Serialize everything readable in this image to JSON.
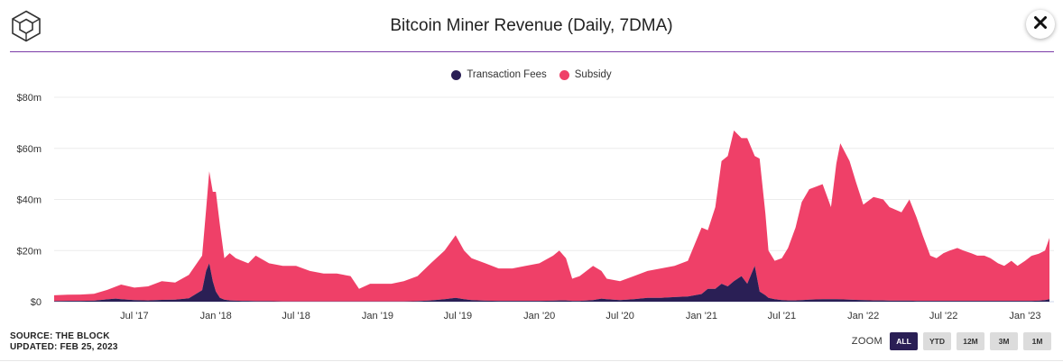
{
  "header": {
    "title": "Bitcoin Miner Revenue (Daily, 7DMA)"
  },
  "legend": [
    {
      "label": "Transaction Fees",
      "color": "#2a1f55"
    },
    {
      "label": "Subsidy",
      "color": "#ef4068"
    }
  ],
  "footer": {
    "source": "SOURCE: THE BLOCK",
    "updated": "UPDATED: FEB 25, 2023"
  },
  "zoom": {
    "label": "ZOOM",
    "buttons": [
      "ALL",
      "YTD",
      "12M",
      "3M",
      "1M"
    ],
    "active": "ALL"
  },
  "icons": {
    "logo": "the-block-cube-logo",
    "close": "close-icon"
  },
  "chart_data": {
    "type": "area",
    "stacked": true,
    "title": "Bitcoin Miner Revenue (Daily, 7DMA)",
    "yticks": [
      "$0",
      "$20m",
      "$40m",
      "$60m",
      "$80m"
    ],
    "ylim": [
      0,
      80
    ],
    "y_unit": "USD millions",
    "xticks": [
      "Jul '17",
      "Jan '18",
      "Jul '18",
      "Jan '19",
      "Jul '19",
      "Jan '20",
      "Jul '20",
      "Jan '21",
      "Jul '21",
      "Jan '22",
      "Jul '22",
      "Jan '23"
    ],
    "xtick_dates": [
      "2017-07-01",
      "2018-01-01",
      "2018-07-01",
      "2019-01-01",
      "2019-07-01",
      "2020-01-01",
      "2020-07-01",
      "2021-01-01",
      "2021-07-01",
      "2022-01-01",
      "2022-07-01",
      "2023-01-01"
    ],
    "xlim": [
      "2017-01-01",
      "2023-02-25"
    ],
    "grid": true,
    "legend_position": "top",
    "x": [
      "2017-01-01",
      "2017-02-01",
      "2017-03-01",
      "2017-04-01",
      "2017-05-01",
      "2017-05-20",
      "2017-06-01",
      "2017-07-01",
      "2017-08-01",
      "2017-09-01",
      "2017-10-01",
      "2017-11-01",
      "2017-12-01",
      "2017-12-10",
      "2017-12-17",
      "2017-12-25",
      "2018-01-01",
      "2018-01-10",
      "2018-01-20",
      "2018-02-01",
      "2018-02-15",
      "2018-03-01",
      "2018-03-15",
      "2018-04-01",
      "2018-05-01",
      "2018-06-01",
      "2018-07-01",
      "2018-08-01",
      "2018-09-01",
      "2018-10-01",
      "2018-11-01",
      "2018-11-20",
      "2018-12-15",
      "2019-01-01",
      "2019-02-01",
      "2019-03-01",
      "2019-04-01",
      "2019-05-01",
      "2019-06-01",
      "2019-06-26",
      "2019-07-15",
      "2019-08-01",
      "2019-09-01",
      "2019-10-01",
      "2019-11-01",
      "2019-12-01",
      "2020-01-01",
      "2020-02-01",
      "2020-02-15",
      "2020-03-01",
      "2020-03-15",
      "2020-04-01",
      "2020-05-01",
      "2020-05-20",
      "2020-06-01",
      "2020-07-01",
      "2020-08-01",
      "2020-09-01",
      "2020-10-01",
      "2020-11-01",
      "2020-12-01",
      "2021-01-01",
      "2021-01-15",
      "2021-02-01",
      "2021-02-15",
      "2021-03-01",
      "2021-03-15",
      "2021-04-01",
      "2021-04-14",
      "2021-05-01",
      "2021-05-12",
      "2021-05-25",
      "2021-06-01",
      "2021-06-15",
      "2021-07-01",
      "2021-07-15",
      "2021-08-01",
      "2021-08-15",
      "2021-09-01",
      "2021-10-01",
      "2021-10-20",
      "2021-11-01",
      "2021-11-10",
      "2021-12-01",
      "2021-12-15",
      "2022-01-01",
      "2022-01-24",
      "2022-02-15",
      "2022-03-01",
      "2022-03-28",
      "2022-04-15",
      "2022-05-01",
      "2022-05-15",
      "2022-06-01",
      "2022-06-15",
      "2022-07-01",
      "2022-07-15",
      "2022-08-01",
      "2022-08-15",
      "2022-09-01",
      "2022-09-15",
      "2022-10-01",
      "2022-10-15",
      "2022-11-01",
      "2022-11-15",
      "2022-12-01",
      "2022-12-15",
      "2023-01-01",
      "2023-01-15",
      "2023-02-01",
      "2023-02-15",
      "2023-02-25"
    ],
    "series": [
      {
        "name": "Transaction Fees",
        "values": [
          0.2,
          0.3,
          0.3,
          0.4,
          0.9,
          1.2,
          1.0,
          0.6,
          0.5,
          0.7,
          0.8,
          1.3,
          4.5,
          12,
          15,
          8,
          4,
          1.5,
          0.8,
          0.5,
          0.4,
          0.3,
          0.3,
          0.2,
          0.2,
          0.1,
          0.1,
          0.1,
          0.1,
          0.1,
          0.1,
          0.1,
          0.1,
          0.1,
          0.1,
          0.1,
          0.2,
          0.5,
          1.0,
          1.5,
          1.0,
          0.6,
          0.4,
          0.3,
          0.3,
          0.3,
          0.3,
          0.4,
          0.5,
          0.5,
          0.3,
          0.3,
          0.6,
          1.2,
          1.0,
          0.6,
          1.0,
          1.5,
          1.5,
          1.8,
          2.0,
          3,
          5,
          5,
          7,
          6,
          8,
          10,
          7,
          14,
          4,
          2.5,
          1.5,
          1.0,
          0.6,
          0.5,
          0.5,
          0.6,
          0.8,
          1.0,
          1.0,
          1.0,
          0.9,
          0.8,
          0.7,
          0.6,
          0.5,
          0.5,
          0.4,
          0.4,
          0.4,
          0.3,
          0.3,
          0.3,
          0.3,
          0.3,
          0.3,
          0.3,
          0.3,
          0.3,
          0.3,
          0.3,
          0.3,
          0.3,
          0.3,
          0.3,
          0.3,
          0.3,
          0.3,
          0.4,
          0.6,
          1.0
        ]
      },
      {
        "name": "Subsidy",
        "values": [
          2.3,
          2.4,
          2.5,
          2.7,
          3.7,
          4.7,
          5.7,
          4.9,
          5.5,
          7.3,
          6.7,
          9.2,
          13.5,
          24,
          36,
          35,
          39,
          28.5,
          16.2,
          18.5,
          16.6,
          15.7,
          14.7,
          17.8,
          14.8,
          13.9,
          13.9,
          11.9,
          10.9,
          10.9,
          9.9,
          4.9,
          6.9,
          6.9,
          6.9,
          7.9,
          9.8,
          14.5,
          19.0,
          24.5,
          19.0,
          16.4,
          14.6,
          12.7,
          12.7,
          13.7,
          14.7,
          17.6,
          19.5,
          16.5,
          8.7,
          9.7,
          13.4,
          10.8,
          8.0,
          7.4,
          9.0,
          10.5,
          11.5,
          12.2,
          14.0,
          26,
          23,
          32,
          48,
          51,
          59,
          54,
          57,
          43,
          52,
          32,
          18.5,
          15.0,
          16.4,
          20.5,
          28.5,
          38.4,
          43.2,
          45.0,
          36.0,
          53.0,
          61.1,
          54.2,
          46.3,
          37.4,
          40.5,
          39.5,
          36.6,
          34.6,
          39.6,
          32.7,
          25.7,
          17.7,
          16.7,
          18.7,
          19.7,
          20.7,
          19.7,
          18.7,
          17.7,
          17.7,
          16.7,
          14.7,
          13.7,
          15.7,
          13.7,
          15.7,
          17.6,
          18.4,
          19.4,
          24.0
        ]
      }
    ]
  }
}
